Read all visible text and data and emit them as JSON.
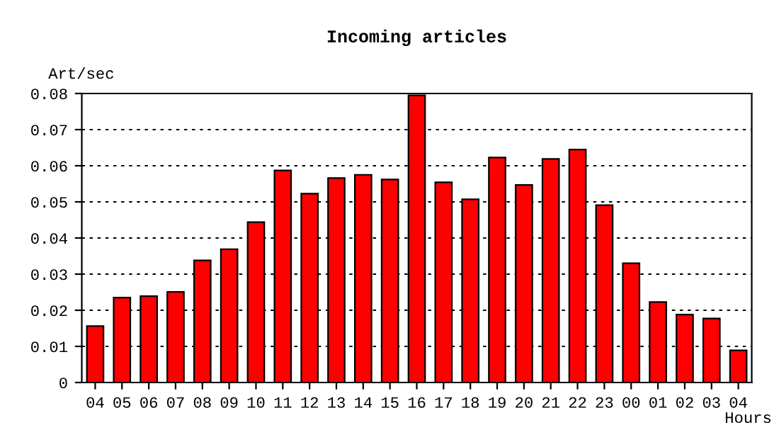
{
  "chart_data": {
    "type": "bar",
    "title": "Incoming articles",
    "xlabel": "Hours",
    "ylabel": "Art/sec",
    "categories": [
      "04",
      "05",
      "06",
      "07",
      "08",
      "09",
      "10",
      "11",
      "12",
      "13",
      "14",
      "15",
      "16",
      "17",
      "18",
      "19",
      "20",
      "21",
      "22",
      "23",
      "00",
      "01",
      "02",
      "03",
      "04"
    ],
    "values": [
      0.0156,
      0.0235,
      0.0239,
      0.0251,
      0.0338,
      0.0369,
      0.0444,
      0.0587,
      0.0523,
      0.0566,
      0.0575,
      0.0562,
      0.0795,
      0.0554,
      0.0507,
      0.0623,
      0.0547,
      0.0619,
      0.0645,
      0.0491,
      0.033,
      0.0223,
      0.0188,
      0.0177,
      0.0089
    ],
    "color": "#ff0000",
    "ylim": [
      0,
      0.08
    ],
    "yticks": [
      0,
      0.01,
      0.02,
      0.03,
      0.04,
      0.05,
      0.06,
      0.07,
      0.08
    ],
    "grid": "y"
  }
}
